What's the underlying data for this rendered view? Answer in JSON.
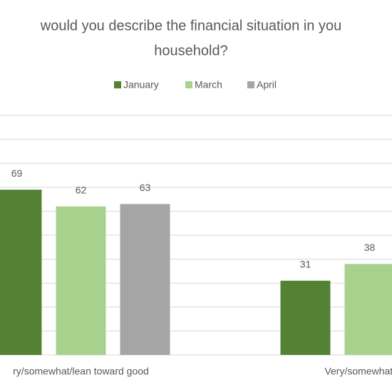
{
  "chart_data": {
    "type": "bar",
    "title_lines": [
      "would you describe the financial situation in you",
      "household?"
    ],
    "categories": [
      "ry/somewhat/lean toward good",
      "Very/somewhat/lean"
    ],
    "series": [
      {
        "name": "January",
        "color": "#548235",
        "values": [
          69,
          31
        ]
      },
      {
        "name": "March",
        "color": "#a9d18e",
        "values": [
          62,
          38
        ]
      },
      {
        "name": "April",
        "color": "#a5a5a5",
        "values": [
          63,
          null
        ]
      }
    ],
    "ylim": [
      0,
      100
    ],
    "yticks": [
      0,
      10,
      20,
      30,
      40,
      50,
      60,
      70,
      80,
      90,
      100
    ],
    "grid": true,
    "legend": "top"
  }
}
